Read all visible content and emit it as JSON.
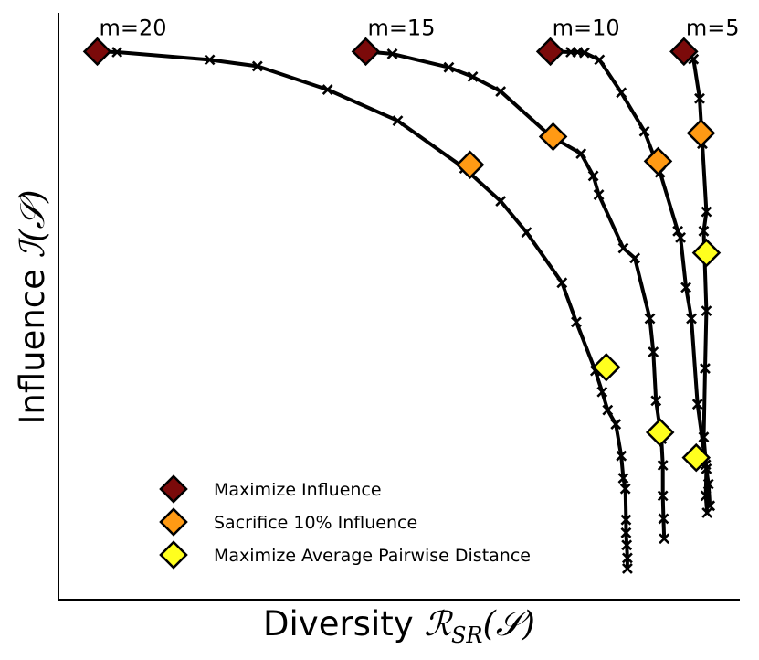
{
  "chart_data": {
    "type": "line",
    "title": "",
    "xlabel": "Diversity",
    "xlabel_math": "R_SR(S)",
    "ylabel": "Influence",
    "ylabel_math": "I(S)",
    "xlim": [
      0,
      100
    ],
    "ylim": [
      0,
      100
    ],
    "grid": false,
    "legend_position": "bottom-left",
    "legend": [
      {
        "label": "Maximize Influence",
        "color": "#7b0a0a"
      },
      {
        "label": "Sacrifice 10% Influence",
        "color": "#ff9a14"
      },
      {
        "label": "Maximize Average Pairwise Distance",
        "color": "#ffff1e"
      }
    ],
    "series": [
      {
        "name": "m=20",
        "x": [
          5.7,
          8.6,
          22.2,
          29.2,
          39.5,
          49.8,
          59.6,
          64.9,
          68.7,
          73.9,
          76.0,
          78.8,
          79.8,
          80.6,
          81.8,
          82.6,
          82.9,
          83.2,
          83.3,
          83.3,
          83.4,
          83.5,
          83.5
        ],
        "y": [
          93.4,
          93.3,
          92.0,
          90.9,
          86.9,
          81.6,
          73.5,
          67.9,
          62.6,
          54.0,
          47.3,
          39.0,
          35.4,
          32.3,
          29.9,
          24.5,
          20.7,
          18.9,
          13.6,
          11.4,
          9.3,
          7.1,
          5.3
        ],
        "markers": {
          "max_influence": [
            5.7,
            93.4
          ],
          "sacrifice_10pct": [
            60.4,
            74.1
          ],
          "max_apd": [
            80.4,
            39.6
          ]
        }
      },
      {
        "name": "m=15",
        "x": [
          45.1,
          49.0,
          57.3,
          60.8,
          64.9,
          72.1,
          76.7,
          78.5,
          79.3,
          82.9,
          84.6,
          86.8,
          87.3,
          87.7,
          88.5,
          88.7,
          88.7,
          88.8,
          88.9
        ],
        "y": [
          93.4,
          93.0,
          90.7,
          89.1,
          86.6,
          79.1,
          76.0,
          72.2,
          69.0,
          59.9,
          58.2,
          47.9,
          42.2,
          33.9,
          27.4,
          22.9,
          17.7,
          13.8,
          10.4
        ],
        "markers": {
          "max_influence": [
            45.1,
            93.4
          ],
          "sacrifice_10pct": [
            72.6,
            78.9
          ],
          "max_apd": [
            88.3,
            28.5
          ]
        }
      },
      {
        "name": "m=10",
        "x": [
          72.2,
          75.2,
          76.2,
          77.2,
          79.4,
          82.6,
          86.0,
          88.3,
          90.9,
          91.3,
          92.1,
          92.9,
          93.8,
          95.0,
          95.4,
          95.6
        ],
        "y": [
          93.4,
          93.3,
          93.3,
          93.2,
          92.0,
          86.4,
          79.8,
          72.8,
          62.8,
          61.7,
          53.2,
          47.9,
          33.3,
          23.0,
          19.7,
          16.0
        ],
        "markers": {
          "max_influence": [
            72.2,
            93.4
          ],
          "sacrifice_10pct": [
            88.0,
            74.7
          ],
          "max_apd": [
            93.6,
            24.2
          ]
        }
      },
      {
        "name": "m=5",
        "x": [
          91.8,
          93.2,
          94.1,
          94.5,
          95.1,
          94.7,
          95.1,
          94.9,
          94.7,
          95.1,
          95.0,
          95.2
        ],
        "y": [
          93.4,
          92.1,
          85.4,
          77.7,
          66.1,
          62.8,
          49.2,
          39.4,
          27.7,
          22.3,
          17.7,
          14.8
        ],
        "markers": {
          "max_influence": [
            91.8,
            93.4
          ],
          "sacrifice_10pct": [
            94.3,
            79.5
          ],
          "max_apd": [
            95.1,
            59.1
          ]
        }
      }
    ]
  }
}
